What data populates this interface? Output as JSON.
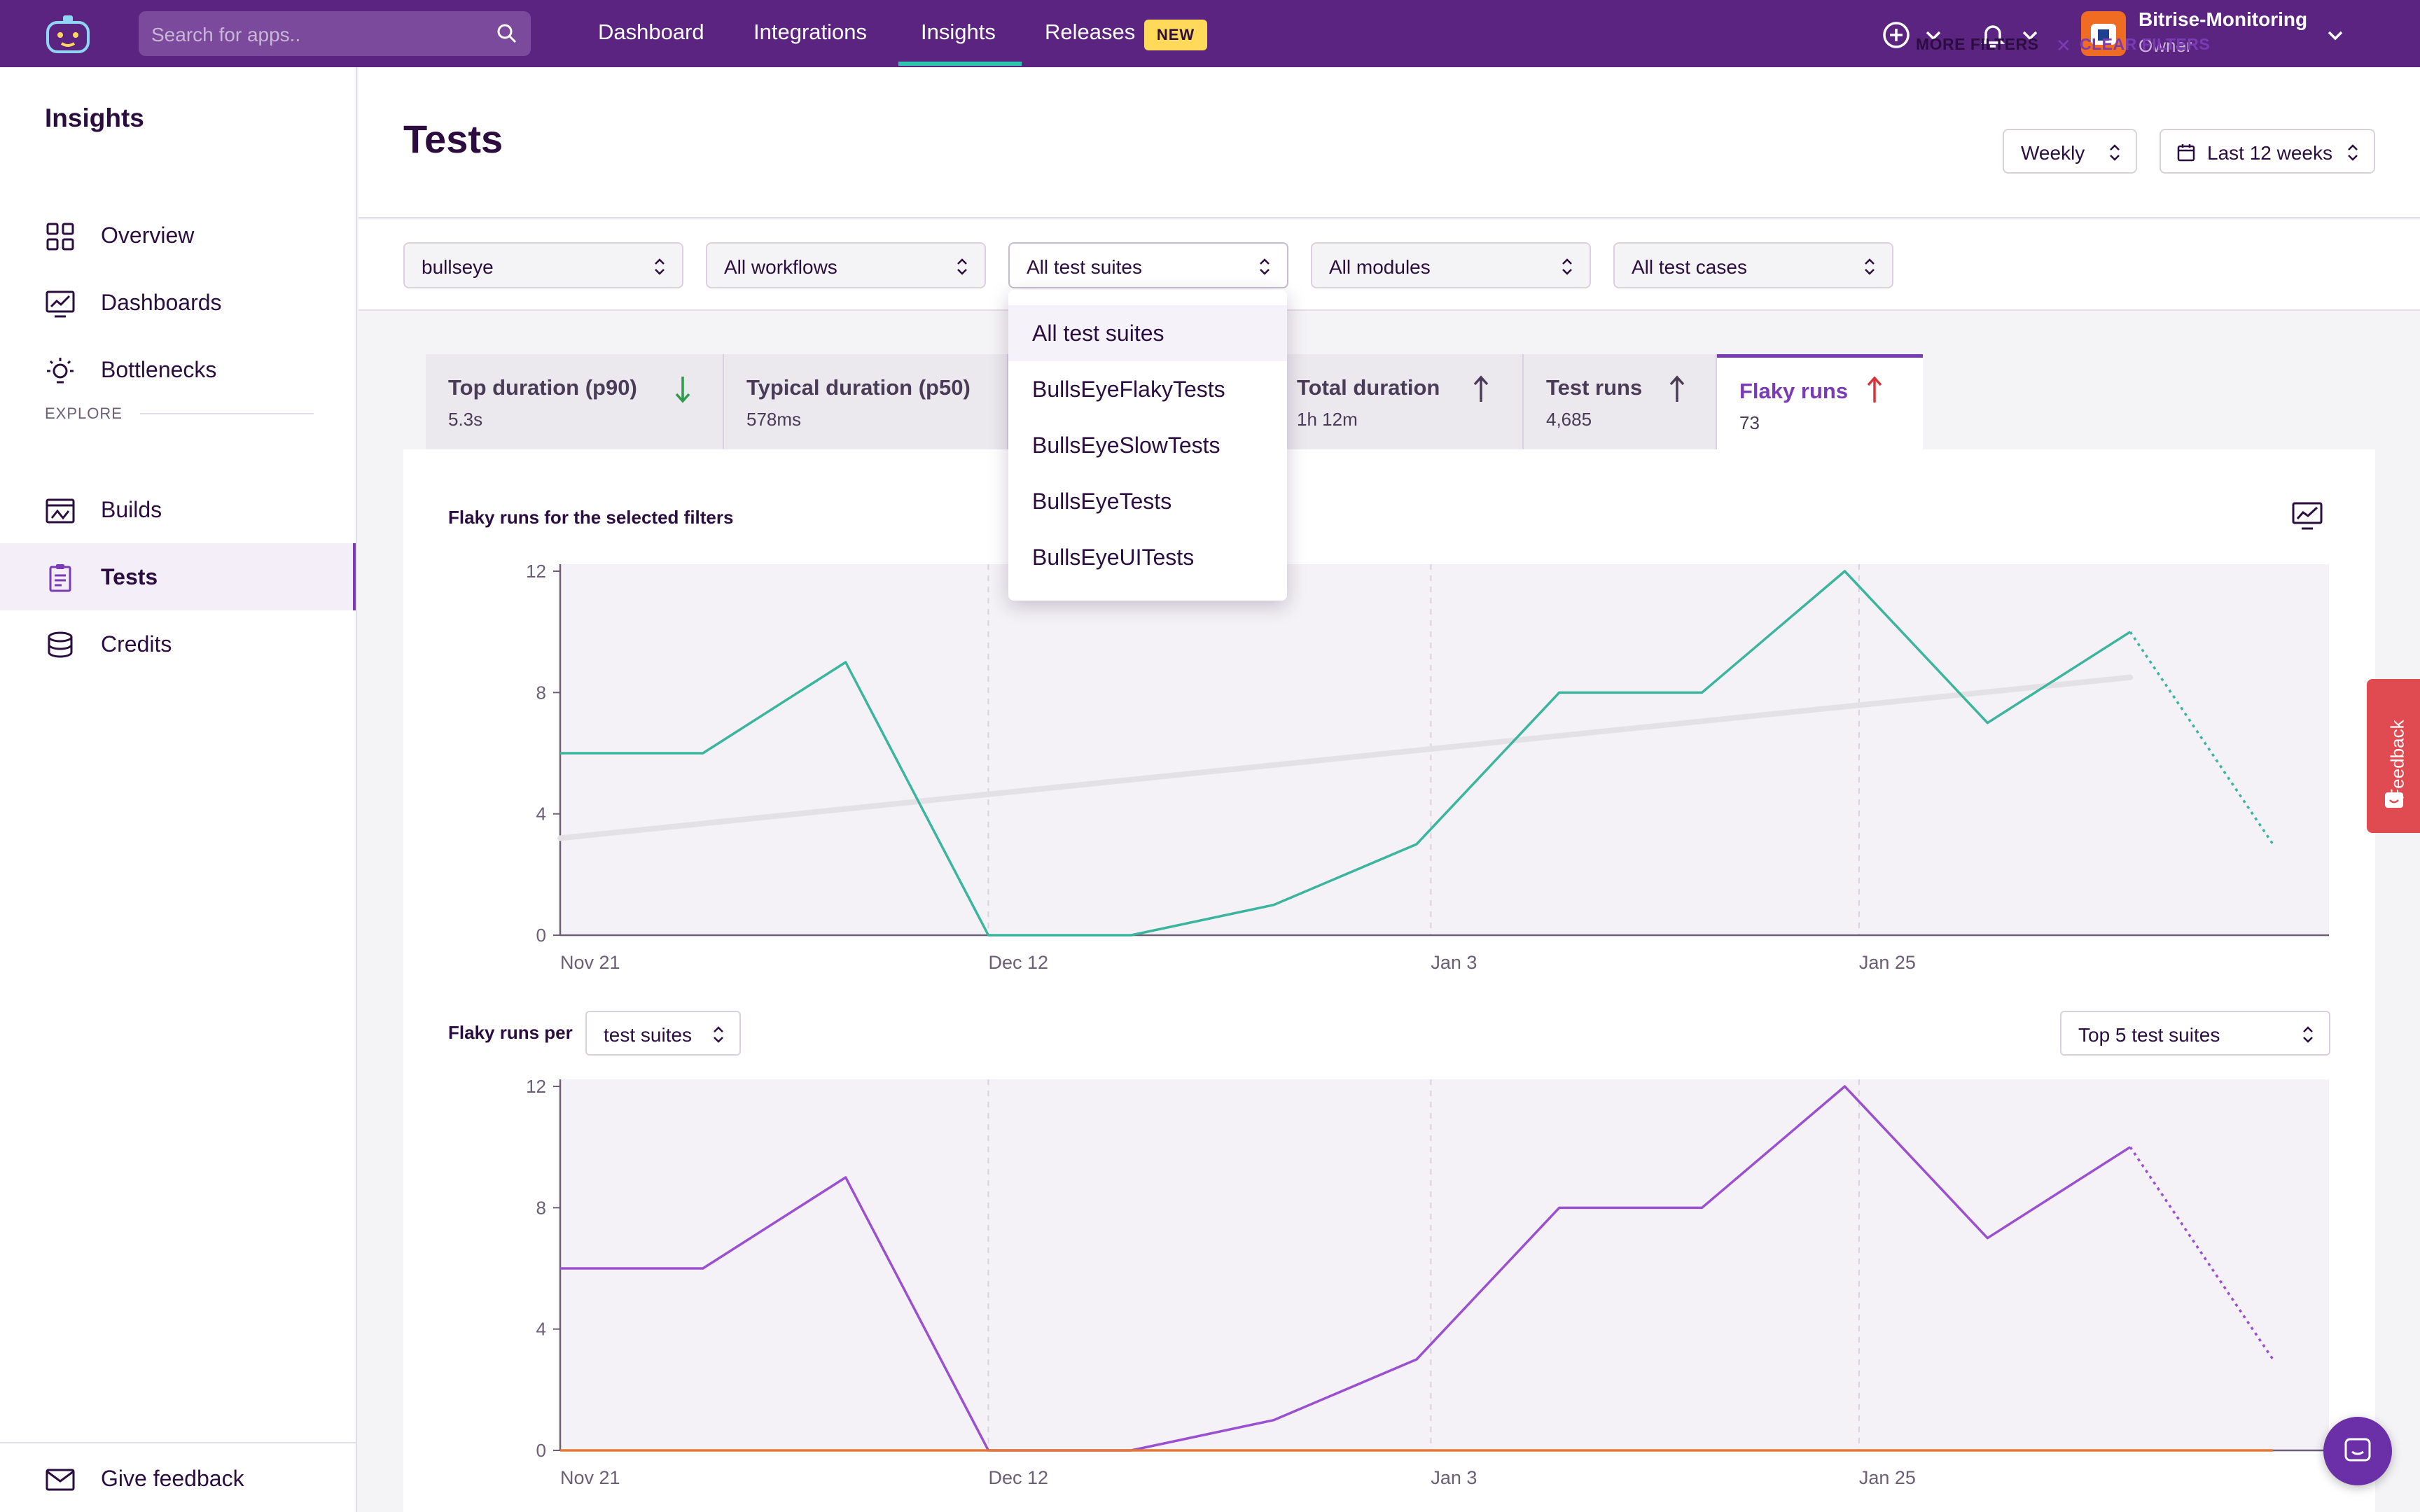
{
  "topbar": {
    "search_placeholder": "Search for apps..",
    "nav": [
      {
        "label": "Dashboard"
      },
      {
        "label": "Integrations"
      },
      {
        "label": "Insights"
      },
      {
        "label": "Releases"
      }
    ],
    "new_badge": "NEW",
    "active_nav": "Insights",
    "account_name": "Bitrise-Monitoring",
    "account_role": "Owner",
    "brand_color": "#5b2481",
    "accent_color": "#2fc6b0"
  },
  "sidebar": {
    "title": "Insights",
    "items": [
      {
        "label": "Overview",
        "icon": "grid-icon"
      },
      {
        "label": "Dashboards",
        "icon": "dashboard-chart-icon"
      },
      {
        "label": "Bottlenecks",
        "icon": "lightbulb-icon"
      }
    ],
    "explore_label": "EXPLORE",
    "explore_items": [
      {
        "label": "Builds",
        "icon": "builds-icon"
      },
      {
        "label": "Tests",
        "icon": "clipboard-icon",
        "active": true
      },
      {
        "label": "Credits",
        "icon": "coins-icon"
      }
    ],
    "feedback_label": "Give feedback"
  },
  "header": {
    "title": "Tests",
    "period": "Weekly",
    "range": "Last 12 weeks"
  },
  "filters": {
    "app": "bullseye",
    "workflows": "All workflows",
    "test_suites": "All test suites",
    "modules": "All modules",
    "test_cases": "All test cases",
    "more": "MORE FILTERS",
    "clear": "CLEAR FILTERS"
  },
  "test_suite_menu": {
    "options": [
      "All test suites",
      "BullsEyeFlakyTests",
      "BullsEyeSlowTests",
      "BullsEyeTests",
      "BullsEyeUITests"
    ],
    "selected": "All test suites"
  },
  "metrics": [
    {
      "title": "Top duration (p90)",
      "value": "5.3s",
      "trend": "down"
    },
    {
      "title": "Typical duration (p50)",
      "value": "578ms",
      "trend": ""
    },
    {
      "title": "Total duration",
      "value": "1h 12m",
      "trend": "up"
    },
    {
      "title": "Test runs",
      "value": "4,685",
      "trend": "up"
    },
    {
      "title": "Flaky runs",
      "value": "73",
      "trend": "up",
      "active": true
    }
  ],
  "chart1": {
    "title": "Flaky runs for the selected filters"
  },
  "chart2": {
    "title_prefix": "Flaky runs per",
    "group_by": "test suites",
    "top_selector": "Top 5 test suites"
  },
  "feedback_tab": "Feedback",
  "chart_data": [
    {
      "type": "line",
      "title": "Flaky runs for the selected filters",
      "x_ticks": [
        "Nov 21",
        "Dec 12",
        "Jan 3",
        "Jan 25"
      ],
      "ylim": [
        0,
        12
      ],
      "y_ticks": [
        0,
        4,
        8,
        12
      ],
      "grid": "vertical dashed at x ticks",
      "series": [
        {
          "color": "#3bb59e",
          "values": [
            6,
            6,
            9,
            0,
            0,
            1,
            3,
            8,
            8,
            12,
            7,
            10,
            3
          ],
          "last_segment_dotted": true
        }
      ],
      "trendline": {
        "color": "#e4e1e6",
        "start": 3.2,
        "end": 8.5
      }
    },
    {
      "type": "line",
      "title": "Flaky runs per test suites",
      "x_ticks": [
        "Nov 21",
        "Dec 12",
        "Jan 3",
        "Jan 25"
      ],
      "ylim": [
        0,
        12
      ],
      "y_ticks": [
        0,
        4,
        8,
        12
      ],
      "grid": "vertical dashed at x ticks",
      "series": [
        {
          "color": "#9b4fd1",
          "values": [
            6,
            6,
            9,
            0,
            0,
            1,
            3,
            8,
            8,
            12,
            7,
            10,
            3
          ],
          "last_segment_dotted": true
        },
        {
          "color": "#e07a34",
          "values": [
            0,
            0,
            0,
            0,
            0,
            0,
            0,
            0,
            0,
            0,
            0,
            0,
            0
          ]
        }
      ]
    }
  ]
}
